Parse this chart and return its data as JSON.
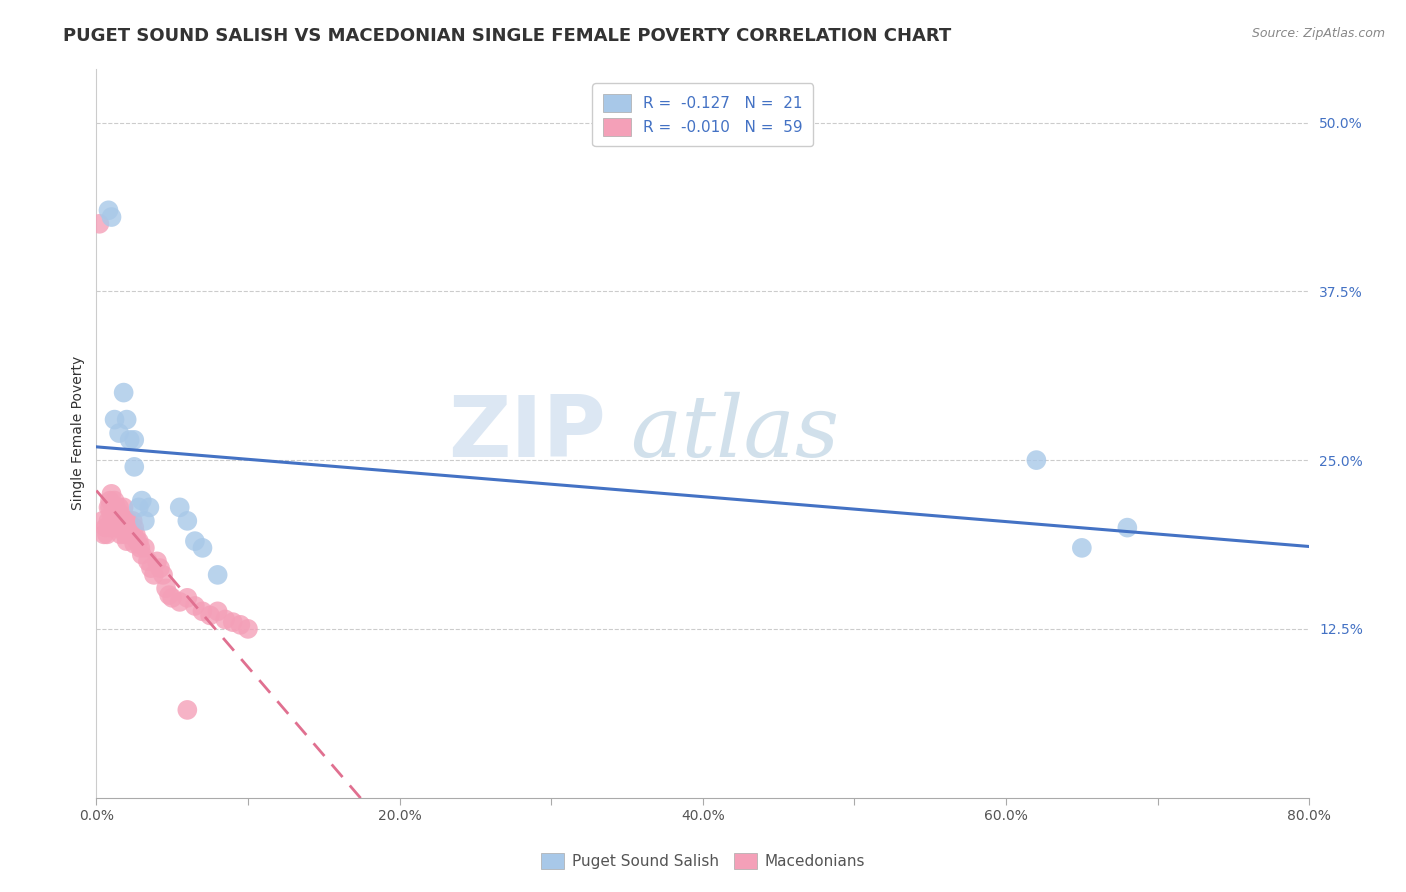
{
  "title": "PUGET SOUND SALISH VS MACEDONIAN SINGLE FEMALE POVERTY CORRELATION CHART",
  "source": "Source: ZipAtlas.com",
  "ylabel": "Single Female Poverty",
  "xlim": [
    0.0,
    0.8
  ],
  "ylim": [
    0.0,
    0.54
  ],
  "yticks": [
    0.125,
    0.25,
    0.375,
    0.5
  ],
  "ytick_labels": [
    "12.5%",
    "25.0%",
    "37.5%",
    "50.0%"
  ],
  "xticks": [
    0.0,
    0.1,
    0.2,
    0.3,
    0.4,
    0.5,
    0.6,
    0.7,
    0.8
  ],
  "xtick_labels": [
    "0.0%",
    "",
    "20.0%",
    "",
    "40.0%",
    "",
    "60.0%",
    "",
    "80.0%"
  ],
  "legend_labels": [
    "Puget Sound Salish",
    "Macedonians"
  ],
  "blue_R": "-0.127",
  "blue_N": "21",
  "pink_R": "-0.010",
  "pink_N": "59",
  "blue_color": "#a8c8e8",
  "pink_color": "#f4a0b8",
  "blue_line_color": "#4472c4",
  "pink_line_color": "#e07090",
  "watermark_zip": "ZIP",
  "watermark_atlas": "atlas",
  "blue_scatter_x": [
    0.008,
    0.01,
    0.012,
    0.015,
    0.018,
    0.02,
    0.022,
    0.025,
    0.025,
    0.028,
    0.03,
    0.032,
    0.035,
    0.055,
    0.06,
    0.065,
    0.07,
    0.08,
    0.62,
    0.65,
    0.68
  ],
  "blue_scatter_y": [
    0.435,
    0.43,
    0.28,
    0.27,
    0.3,
    0.28,
    0.265,
    0.265,
    0.245,
    0.215,
    0.22,
    0.205,
    0.215,
    0.215,
    0.205,
    0.19,
    0.185,
    0.165,
    0.25,
    0.185,
    0.2
  ],
  "pink_scatter_x": [
    0.002,
    0.004,
    0.005,
    0.006,
    0.007,
    0.008,
    0.008,
    0.009,
    0.009,
    0.01,
    0.01,
    0.01,
    0.012,
    0.012,
    0.013,
    0.013,
    0.014,
    0.015,
    0.015,
    0.016,
    0.016,
    0.017,
    0.018,
    0.018,
    0.019,
    0.02,
    0.02,
    0.021,
    0.022,
    0.023,
    0.024,
    0.025,
    0.025,
    0.026,
    0.027,
    0.028,
    0.029,
    0.03,
    0.032,
    0.034,
    0.036,
    0.038,
    0.04,
    0.042,
    0.044,
    0.046,
    0.048,
    0.05,
    0.055,
    0.06,
    0.065,
    0.07,
    0.075,
    0.08,
    0.085,
    0.09,
    0.095,
    0.1,
    0.06
  ],
  "pink_scatter_y": [
    0.425,
    0.205,
    0.195,
    0.2,
    0.195,
    0.215,
    0.205,
    0.22,
    0.215,
    0.225,
    0.21,
    0.2,
    0.22,
    0.205,
    0.215,
    0.2,
    0.21,
    0.215,
    0.2,
    0.21,
    0.195,
    0.2,
    0.215,
    0.2,
    0.195,
    0.205,
    0.19,
    0.205,
    0.2,
    0.195,
    0.205,
    0.2,
    0.188,
    0.195,
    0.19,
    0.19,
    0.185,
    0.18,
    0.185,
    0.175,
    0.17,
    0.165,
    0.175,
    0.17,
    0.165,
    0.155,
    0.15,
    0.148,
    0.145,
    0.148,
    0.142,
    0.138,
    0.135,
    0.138,
    0.132,
    0.13,
    0.128,
    0.125,
    0.065
  ],
  "title_fontsize": 13,
  "axis_fontsize": 10,
  "tick_fontsize": 10,
  "legend_fontsize": 11
}
